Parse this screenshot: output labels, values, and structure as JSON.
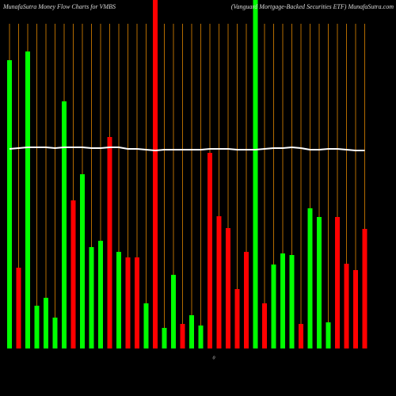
{
  "chart_data": {
    "type": "bar",
    "title": "MunafaSutra  Money Flow  Charts for VMBS",
    "subtitle": "(Vanguard Mortgage-Backed Securities ETF) MunafaSutra.com",
    "annotation": "0",
    "ylim": [
      0,
      440
    ],
    "values": [
      364,
      102,
      375,
      54,
      64,
      39,
      312,
      187,
      220,
      128,
      136,
      267,
      122,
      115,
      115,
      57,
      440,
      26,
      93,
      31,
      42,
      29,
      247,
      167,
      152,
      75,
      122,
      440,
      57,
      106,
      120,
      118,
      31,
      177,
      166,
      33,
      166,
      107,
      99,
      151
    ],
    "colors": [
      "#00ff00",
      "#ff0000",
      "#00ff00",
      "#00ff00",
      "#00ff00",
      "#00ff00",
      "#00ff00",
      "#ff0000",
      "#00ff00",
      "#00ff00",
      "#00ff00",
      "#ff0000",
      "#00ff00",
      "#ff0000",
      "#ff0000",
      "#00ff00",
      "#ff0000",
      "#00ff00",
      "#00ff00",
      "#ff0000",
      "#00ff00",
      "#00ff00",
      "#ff0000",
      "#ff0000",
      "#ff0000",
      "#ff0000",
      "#ff0000",
      "#00ff00",
      "#ff0000",
      "#00ff00",
      "#00ff00",
      "#00ff00",
      "#ff0000",
      "#00ff00",
      "#00ff00",
      "#00ff00",
      "#ff0000",
      "#ff0000",
      "#ff0000",
      "#ff0000"
    ],
    "line": {
      "color": "#ffffff",
      "values": [
        252,
        253,
        254,
        254,
        254,
        253,
        254,
        254,
        254,
        253,
        253,
        254,
        254,
        252,
        252,
        251,
        250,
        251,
        251,
        251,
        251,
        251,
        252,
        252,
        252,
        251,
        251,
        251,
        252,
        253,
        253,
        254,
        253,
        251,
        251,
        252,
        252,
        251,
        250,
        250
      ]
    },
    "gridline_color": "#b36b00"
  }
}
